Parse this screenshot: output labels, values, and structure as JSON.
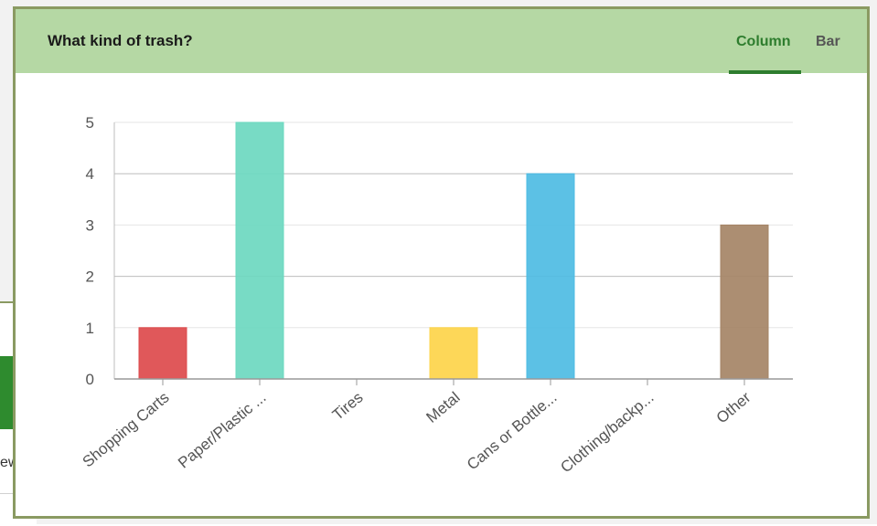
{
  "background": {
    "partial_text": "ew"
  },
  "panel": {
    "title": "What kind of trash?",
    "tabs": [
      {
        "label": "Column",
        "active": true
      },
      {
        "label": "Bar",
        "active": false
      }
    ]
  },
  "colors": {
    "header_bg": "#b5d8a4",
    "active_tab": "#2e7d2e",
    "border": "#8a9a62"
  },
  "chart_data": {
    "type": "bar",
    "title": "",
    "xlabel": "",
    "ylabel": "",
    "categories": [
      "Shopping Carts",
      "Paper/Plastic ...",
      "Tires",
      "Metal",
      "Cans or Bottle...",
      "Clothing/backp...",
      "Other"
    ],
    "values": [
      1,
      5,
      0,
      1,
      4,
      0,
      3
    ],
    "colors": [
      "#dd4a4c",
      "#6dd8c0",
      "#b0b0b0",
      "#fdd44a",
      "#4ebce3",
      "#b0b0b0",
      "#a58466"
    ],
    "ylim": [
      0,
      5
    ],
    "yticks": [
      "0",
      "1",
      "2",
      "3",
      "4",
      "5"
    ],
    "grid": true
  }
}
